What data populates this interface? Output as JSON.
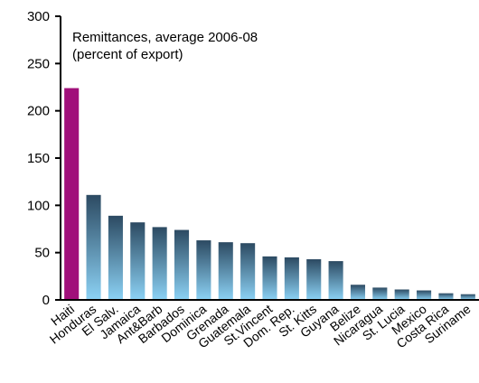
{
  "chart_data": {
    "type": "bar",
    "title_lines": [
      "Remittances, average 2006-08",
      "(percent of export)"
    ],
    "xlabel": "",
    "ylabel": "",
    "ylim": [
      0,
      300
    ],
    "yticks": [
      0,
      50,
      100,
      150,
      200,
      250,
      300
    ],
    "grid": false,
    "categories": [
      "Haiti",
      "Honduras",
      "El Salv.",
      "Jamaica",
      "Ant&Barb",
      "Barbados",
      "Dominica",
      "Grenada",
      "Guatemala",
      "St.Vincent",
      "Dom. Rep.",
      "St. Kitts",
      "Guyana",
      "Belize",
      "Nicaragua",
      "St. Lucia",
      "Mexico",
      "Costa Rica",
      "Suriname"
    ],
    "values": [
      224,
      111,
      89,
      82,
      77,
      74,
      63,
      61,
      60,
      46,
      45,
      43,
      41,
      16,
      13,
      11,
      10,
      7,
      6
    ],
    "colors": {
      "highlight": "#a0107a",
      "gradient_top": "#2c4a62",
      "gradient_bottom": "#8cd2f5"
    }
  }
}
